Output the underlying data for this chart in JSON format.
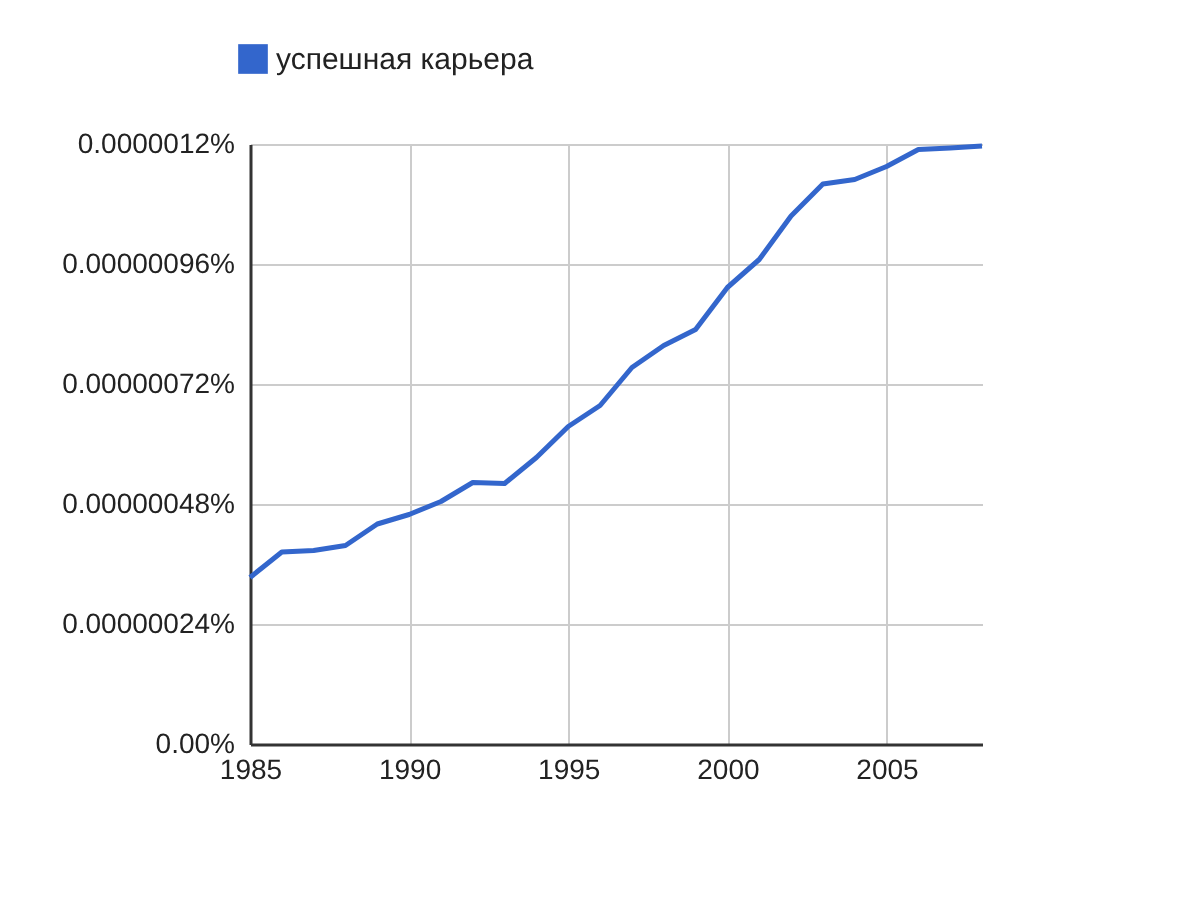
{
  "chart_data": {
    "type": "line",
    "x": [
      1985,
      1986,
      1987,
      1988,
      1989,
      1990,
      1991,
      1992,
      1993,
      1994,
      1995,
      1996,
      1997,
      1998,
      1999,
      2000,
      2001,
      2002,
      2003,
      2004,
      2005,
      2006,
      2007,
      2008
    ],
    "series": [
      {
        "name": "успешная карьера",
        "color": "#3366cc",
        "values": [
          3.33e-07,
          3.84e-07,
          3.87e-07,
          3.97e-07,
          4.4e-07,
          4.59e-07,
          4.85e-07,
          5.23e-07,
          5.21e-07,
          5.73e-07,
          6.35e-07,
          6.77e-07,
          7.53e-07,
          7.97e-07,
          8.29e-07,
          9.13e-07,
          9.69e-07,
          1.056e-06,
          1.12e-06,
          1.129e-06,
          1.155e-06,
          1.189e-06,
          1.192e-06,
          1.196e-06
        ]
      }
    ],
    "xlim": [
      1985,
      2008
    ],
    "xticks": [
      1985,
      1990,
      1995,
      2000,
      2005
    ],
    "ylim": [
      0,
      1.2e-06
    ],
    "yticks": [
      {
        "value": 0,
        "label": "0.00%"
      },
      {
        "value": 2.4e-07,
        "label": "0.00000024%"
      },
      {
        "value": 4.8e-07,
        "label": "0.00000048%"
      },
      {
        "value": 7.2e-07,
        "label": "0.00000072%"
      },
      {
        "value": 9.6e-07,
        "label": "0.00000096%"
      },
      {
        "value": 1.2e-06,
        "label": "0.0000012%"
      }
    ],
    "grid": true,
    "legend": "top left",
    "marker": "none",
    "line_style": "solid"
  }
}
